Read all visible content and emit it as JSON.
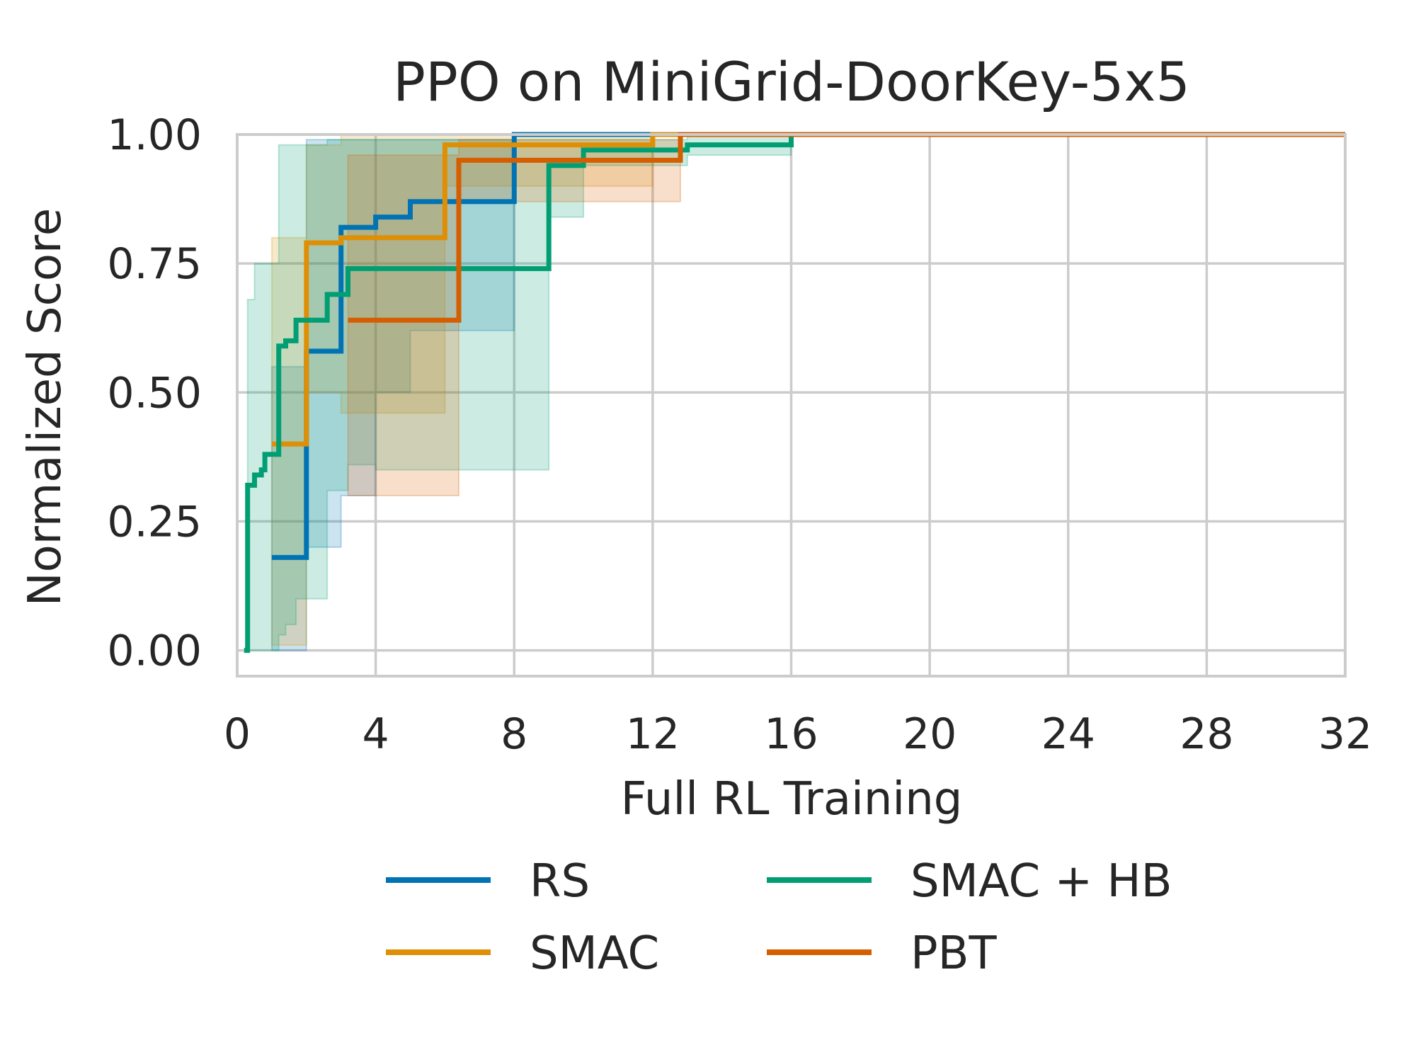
{
  "chart_data": {
    "type": "line",
    "title": "PPO on MiniGrid-DoorKey-5x5",
    "xlabel": "Full RL Training",
    "ylabel": "Normalized Score",
    "xlim": [
      0,
      32
    ],
    "ylim": [
      -0.05,
      1.0
    ],
    "xticks": [
      "0",
      "4",
      "8",
      "12",
      "16",
      "20",
      "24",
      "28",
      "32"
    ],
    "yticks": [
      "0.00",
      "0.25",
      "0.50",
      "0.75",
      "1.00"
    ],
    "grid": true,
    "legend_placement": "bottom-center, two columns",
    "series": [
      {
        "name": "RS",
        "color": "#0173b2",
        "x": [
          1.0,
          2.0,
          2.0,
          3.0,
          3.0,
          4.0,
          4.0,
          5.0,
          5.0,
          8.0,
          8.0,
          32.0
        ],
        "y": [
          0.18,
          0.18,
          0.58,
          0.58,
          0.82,
          0.82,
          0.84,
          0.84,
          0.87,
          0.87,
          1.0,
          1.0
        ],
        "band_upper": [
          0.55,
          0.55,
          0.99,
          0.99,
          0.99,
          0.99,
          0.99,
          0.99,
          0.99,
          0.99,
          1.0,
          1.0
        ],
        "band_lower": [
          0.0,
          0.0,
          0.2,
          0.2,
          0.3,
          0.3,
          0.5,
          0.5,
          0.62,
          0.62,
          1.0,
          1.0
        ]
      },
      {
        "name": "SMAC",
        "color": "#de8f05",
        "x": [
          1.0,
          2.0,
          2.0,
          3.0,
          3.0,
          6.0,
          6.0,
          12.0,
          12.0,
          32.0
        ],
        "y": [
          0.4,
          0.4,
          0.79,
          0.79,
          0.8,
          0.8,
          0.98,
          0.98,
          1.0,
          1.0
        ],
        "band_upper": [
          0.8,
          0.8,
          0.98,
          0.98,
          1.0,
          1.0,
          1.0,
          1.0,
          1.0,
          1.0
        ],
        "band_lower": [
          0.01,
          0.01,
          0.5,
          0.5,
          0.46,
          0.46,
          0.9,
          0.9,
          1.0,
          1.0
        ]
      },
      {
        "name": "SMAC + HB",
        "color": "#029e73",
        "x": [
          0.2,
          0.3,
          0.3,
          0.5,
          0.5,
          0.7,
          0.7,
          0.8,
          0.8,
          1.2,
          1.2,
          1.4,
          1.4,
          1.7,
          1.7,
          2.6,
          2.6,
          3.2,
          3.2,
          4.0,
          4.0,
          9.0,
          9.0,
          10.0,
          10.0,
          13.0,
          13.0,
          16.0,
          16.0,
          32.0
        ],
        "y": [
          0.0,
          0.0,
          0.32,
          0.32,
          0.34,
          0.34,
          0.35,
          0.35,
          0.38,
          0.38,
          0.59,
          0.59,
          0.6,
          0.6,
          0.64,
          0.64,
          0.69,
          0.69,
          0.74,
          0.74,
          0.74,
          0.74,
          0.94,
          0.94,
          0.97,
          0.97,
          0.98,
          0.98,
          1.0,
          1.0
        ],
        "band_upper": [
          0.0,
          0.0,
          0.68,
          0.68,
          0.75,
          0.75,
          0.75,
          0.75,
          0.75,
          0.75,
          0.98,
          0.98,
          0.98,
          0.98,
          0.98,
          0.98,
          0.99,
          0.99,
          0.99,
          0.99,
          0.99,
          0.99,
          0.99,
          0.99,
          0.99,
          0.99,
          1.0,
          1.0,
          1.0,
          1.0
        ],
        "band_lower": [
          0.0,
          0.0,
          0.0,
          0.0,
          0.0,
          0.0,
          0.0,
          0.0,
          0.0,
          0.0,
          0.03,
          0.03,
          0.05,
          0.05,
          0.1,
          0.1,
          0.31,
          0.31,
          0.36,
          0.36,
          0.35,
          0.35,
          0.84,
          0.84,
          0.94,
          0.94,
          0.96,
          0.96,
          1.0,
          1.0
        ]
      },
      {
        "name": "PBT",
        "color": "#d55e00",
        "x": [
          3.2,
          6.4,
          6.4,
          12.8,
          12.8,
          32.0
        ],
        "y": [
          0.64,
          0.64,
          0.95,
          0.95,
          1.0,
          1.0
        ],
        "band_upper": [
          0.96,
          0.96,
          0.99,
          0.99,
          1.0,
          1.0
        ],
        "band_lower": [
          0.3,
          0.3,
          0.87,
          0.87,
          1.0,
          1.0
        ]
      }
    ]
  }
}
